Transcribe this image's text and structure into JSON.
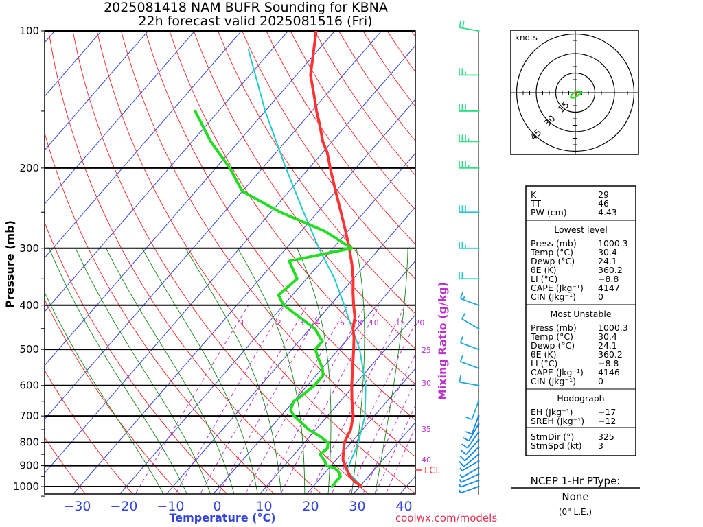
{
  "chart_data": {
    "type": "line",
    "title": "2025081418 NAM BUFR Sounding for KBNA",
    "subtitle": "22h forecast valid 2025081516 (Fri)",
    "xlabel": "Temperature (°C)",
    "ylabel": "Pressure (mb)",
    "mixing_label": "Mixing Ratio (g/kg)",
    "credit": "coolwx.com/models",
    "xlim": [
      -40,
      40
    ],
    "ylim": [
      1050,
      100
    ],
    "pressure_ticks": [
      "100",
      "200",
      "300",
      "400",
      "500",
      "600",
      "700",
      "800",
      "900",
      "1000"
    ],
    "temp_ticks": [
      "−30",
      "−20",
      "−10",
      "0",
      "10",
      "20",
      "30",
      "40"
    ],
    "mixing_ratio_labels": [
      "1",
      "2",
      "3",
      "4",
      "6",
      "8",
      "10",
      "15",
      "20",
      "25",
      "30",
      "35",
      "40"
    ],
    "lcl_label": "LCL",
    "lcl_pressure": 920,
    "series": [
      {
        "name": "Temperature",
        "color": "#ff3333",
        "pressure": [
          1000,
          975,
          950,
          925,
          900,
          875,
          850,
          825,
          800,
          775,
          750,
          725,
          700,
          650,
          600,
          550,
          500,
          470,
          450,
          425,
          400,
          375,
          350,
          325,
          300,
          275,
          250,
          225,
          200,
          185,
          175,
          160,
          150,
          140,
          125,
          110,
          100
        ],
        "values": [
          30.4,
          28,
          26,
          24.5,
          23,
          21.5,
          20.5,
          19.5,
          18.5,
          18,
          17.5,
          16.5,
          15.5,
          12.5,
          9.5,
          6.5,
          3.2,
          1,
          -0.8,
          -2.5,
          -5,
          -7.5,
          -10,
          -13,
          -16.5,
          -20.5,
          -25,
          -30,
          -35.5,
          -39,
          -42,
          -46,
          -49,
          -52,
          -57,
          -61,
          -64
        ]
      },
      {
        "name": "Dewpoint",
        "color": "#22dd22",
        "pressure": [
          1000,
          975,
          950,
          925,
          910,
          900,
          875,
          850,
          825,
          800,
          775,
          750,
          700,
          680,
          650,
          640,
          600,
          570,
          550,
          520,
          500,
          480,
          450,
          400,
          380,
          350,
          320,
          300,
          275,
          250,
          225,
          200,
          175,
          150
        ],
        "values": [
          24.1,
          24,
          24,
          22.5,
          21,
          19,
          17.5,
          15.5,
          16,
          15,
          12,
          8.5,
          2.8,
          1,
          0,
          0.5,
          1.5,
          1.5,
          0,
          -3,
          -5,
          -5,
          -9,
          -20,
          -23,
          -22,
          -27,
          -16,
          -25,
          -38,
          -50,
          -57,
          -66,
          -75
        ]
      },
      {
        "name": "Parcel",
        "color": "#22cccc",
        "pressure": [
          1000,
          950,
          920,
          900,
          850,
          800,
          700,
          600,
          500,
          450,
          400,
          350,
          300,
          250,
          200,
          150,
          110
        ],
        "values": [
          30.4,
          26.5,
          24.2,
          23.8,
          22.7,
          21.5,
          18,
          12.5,
          4.5,
          -1,
          -7,
          -14,
          -23,
          -33,
          -45,
          -60,
          -75
        ]
      }
    ],
    "wind_profile": {
      "pressure": [
        1000,
        970,
        940,
        910,
        880,
        850,
        820,
        790,
        760,
        730,
        700,
        650,
        600,
        550,
        500,
        450,
        400,
        350,
        300,
        250,
        200,
        175,
        150,
        125,
        100
      ],
      "speed_kt": [
        5,
        5,
        5,
        5,
        5,
        10,
        10,
        10,
        10,
        10,
        10,
        10,
        10,
        10,
        10,
        10,
        15,
        20,
        25,
        30,
        35,
        35,
        30,
        25,
        20
      ],
      "dir_deg": [
        250,
        250,
        245,
        240,
        240,
        230,
        225,
        220,
        215,
        210,
        200,
        200,
        280,
        290,
        290,
        300,
        290,
        270,
        270,
        270,
        270,
        270,
        270,
        270,
        280
      ]
    },
    "hodograph": {
      "label": "knots",
      "ring_labels": [
        "15",
        "30",
        "45"
      ],
      "u_kt": [
        -1,
        -2,
        -3,
        -3.5,
        -2,
        0,
        2,
        4,
        5,
        3,
        1,
        -1
      ],
      "v_kt": [
        0,
        -1,
        -2,
        -3.5,
        -4,
        -3.5,
        -2,
        -1,
        0,
        1,
        1,
        0
      ]
    }
  },
  "indices_table": {
    "general": [
      {
        "label": "K",
        "value": "29"
      },
      {
        "label": "TT",
        "value": "46"
      },
      {
        "label": "PW (cm)",
        "value": "4.43"
      }
    ],
    "lowest_level": {
      "title": "Lowest level",
      "rows": [
        {
          "label": "Press (mb)",
          "value": "1000.3"
        },
        {
          "label": "Temp (°C)",
          "value": "30.4"
        },
        {
          "label": "Dewp (°C)",
          "value": "24.1"
        },
        {
          "label": "θE (K)",
          "value": "360.2"
        },
        {
          "label": "LI (°C)",
          "value": "−8.8"
        },
        {
          "label": "CAPE (Jkg⁻¹)",
          "value": "4147"
        },
        {
          "label": "CIN (Jkg⁻¹)",
          "value": "0"
        }
      ]
    },
    "most_unstable": {
      "title": "Most Unstable",
      "rows": [
        {
          "label": "Press (mb)",
          "value": "1000.3"
        },
        {
          "label": "Temp (°C)",
          "value": "30.4"
        },
        {
          "label": "Dewp (°C)",
          "value": "24.1"
        },
        {
          "label": "θE (K)",
          "value": "360.2"
        },
        {
          "label": "LI (°C)",
          "value": "−8.8"
        },
        {
          "label": "CAPE (Jkg⁻¹)",
          "value": "4146"
        },
        {
          "label": "CIN (Jkg⁻¹)",
          "value": "0"
        }
      ]
    },
    "hodograph": {
      "title": "Hodograph",
      "rows": [
        {
          "label": "EH (Jkg⁻¹)",
          "value": "−17"
        },
        {
          "label": "SREH (Jkg⁻¹)",
          "value": "−12"
        }
      ]
    },
    "storm": [
      {
        "label": "StmDir (°)",
        "value": "325"
      },
      {
        "label": "StmSpd (kt)",
        "value": "3"
      }
    ]
  },
  "ptype": {
    "title": "NCEP 1-Hr PType:",
    "value": "None",
    "note": "(0\" L.E.)"
  },
  "colors": {
    "isotherm": "#3344dd",
    "dry_adiabat": "#ee2222",
    "moist_adiabat": "#118811",
    "mixing_ratio": "#bb33cc",
    "isobar": "#000000"
  }
}
